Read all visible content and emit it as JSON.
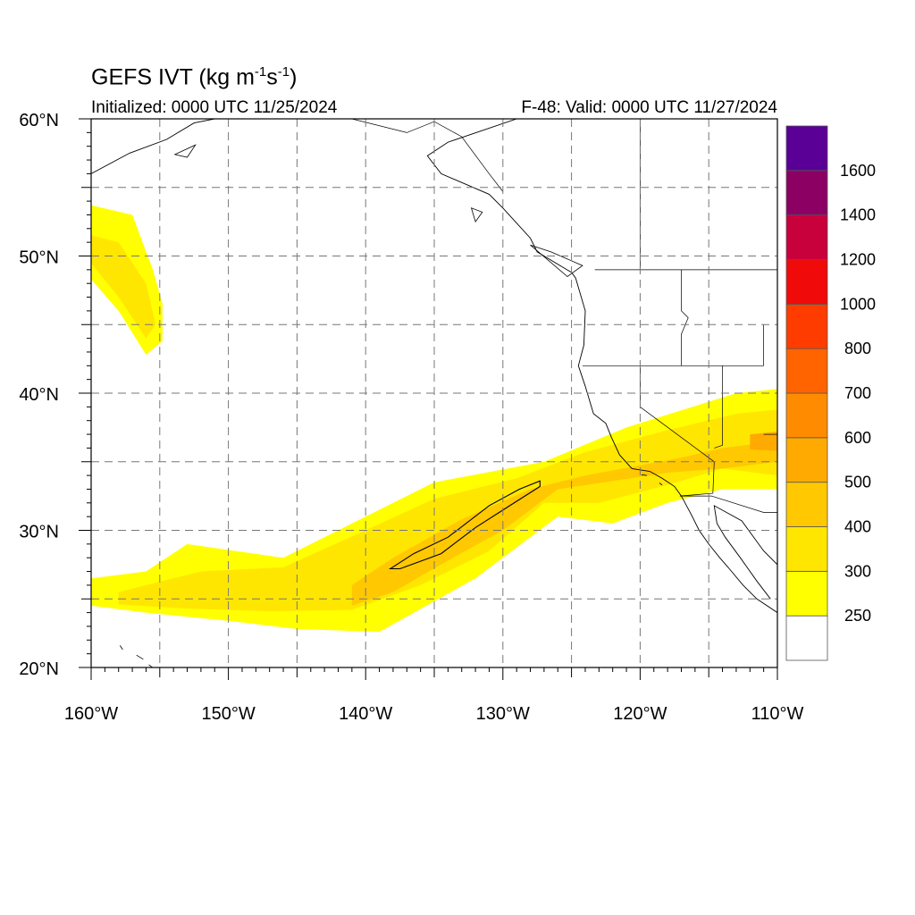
{
  "title": {
    "prefix": "GEFS IVT (kg m",
    "exp1": "-1",
    "mid": "s",
    "exp2": "-1",
    "suffix": ")"
  },
  "initialized": "Initialized: 0000 UTC 11/25/2024",
  "valid": "F-48: Valid: 0000 UTC 11/27/2024",
  "map": {
    "lon_range": [
      -160,
      -110
    ],
    "lat_range": [
      20,
      60
    ],
    "lat_ticks": [
      {
        "value": 60,
        "label": "60°N"
      },
      {
        "value": 50,
        "label": "50°N"
      },
      {
        "value": 40,
        "label": "40°N"
      },
      {
        "value": 30,
        "label": "30°N"
      },
      {
        "value": 20,
        "label": "20°N"
      }
    ],
    "lon_ticks": [
      {
        "value": -160,
        "label": "160°W"
      },
      {
        "value": -150,
        "label": "150°W"
      },
      {
        "value": -140,
        "label": "140°W"
      },
      {
        "value": -130,
        "label": "130°W"
      },
      {
        "value": -120,
        "label": "120°W"
      },
      {
        "value": -110,
        "label": "110°W"
      }
    ],
    "grid_lons": [
      -155,
      -150,
      -145,
      -140,
      -135,
      -130,
      -125,
      -120,
      -115
    ],
    "grid_lats": [
      25,
      30,
      35,
      40,
      45,
      50,
      55
    ]
  },
  "colorbar": {
    "levels": [
      {
        "label": "",
        "color": "#ffffff"
      },
      {
        "label": "250",
        "color": "#ffff00"
      },
      {
        "label": "300",
        "color": "#ffe600"
      },
      {
        "label": "400",
        "color": "#ffc800"
      },
      {
        "label": "500",
        "color": "#ffaa00"
      },
      {
        "label": "600",
        "color": "#ff8c00"
      },
      {
        "label": "700",
        "color": "#ff6400"
      },
      {
        "label": "800",
        "color": "#ff3c00"
      },
      {
        "label": "1000",
        "color": "#f00a0a"
      },
      {
        "label": "1200",
        "color": "#c8003c"
      },
      {
        "label": "1400",
        "color": "#8c0064"
      },
      {
        "label": "1600",
        "color": "#5a0096"
      }
    ]
  },
  "ivt_features": [
    {
      "name": "atmospheric-river-main",
      "level": 1,
      "lonlat": [
        [
          -160,
          26.5
        ],
        [
          -156,
          27
        ],
        [
          -153,
          29
        ],
        [
          -146,
          28
        ],
        [
          -140,
          31
        ],
        [
          -135,
          33.5
        ],
        [
          -127,
          35
        ],
        [
          -121,
          37.5
        ],
        [
          -113,
          40
        ],
        [
          -110,
          40.3
        ],
        [
          -110,
          33
        ],
        [
          -114,
          33
        ],
        [
          -118,
          32
        ],
        [
          -122,
          30.5
        ],
        [
          -126,
          31
        ],
        [
          -132,
          26.5
        ],
        [
          -139,
          22.6
        ],
        [
          -145,
          22.8
        ],
        [
          -150,
          23.4
        ],
        [
          -156,
          24
        ],
        [
          -160,
          24.5
        ]
      ]
    },
    {
      "name": "atmospheric-river-core",
      "level": 2,
      "lonlat": [
        [
          -158,
          25.5
        ],
        [
          -152,
          27
        ],
        [
          -146,
          27.3
        ],
        [
          -140,
          30
        ],
        [
          -135,
          32.3
        ],
        [
          -129,
          33.8
        ],
        [
          -124,
          35.7
        ],
        [
          -118,
          37.3
        ],
        [
          -113,
          38.5
        ],
        [
          -110,
          38.8
        ],
        [
          -110,
          34
        ],
        [
          -114,
          34.5
        ],
        [
          -118,
          33.3
        ],
        [
          -123,
          32
        ],
        [
          -127,
          32
        ],
        [
          -131,
          28.5
        ],
        [
          -136,
          26
        ],
        [
          -141,
          24.2
        ],
        [
          -147,
          24.1
        ],
        [
          -153,
          24.3
        ],
        [
          -158,
          24.6
        ]
      ]
    },
    {
      "name": "atmospheric-river-inner",
      "level": 3,
      "lonlat": [
        [
          -141,
          26
        ],
        [
          -138,
          28
        ],
        [
          -133,
          30.8
        ],
        [
          -128,
          33
        ],
        [
          -124,
          34
        ],
        [
          -117,
          35.3
        ],
        [
          -114,
          36
        ],
        [
          -110,
          36.5
        ],
        [
          -110,
          35
        ],
        [
          -114,
          34.5
        ],
        [
          -118,
          34.2
        ],
        [
          -122,
          33.6
        ],
        [
          -126,
          33
        ],
        [
          -130,
          30
        ],
        [
          -134,
          27.8
        ],
        [
          -138,
          25.5
        ],
        [
          -141,
          24.5
        ]
      ]
    },
    {
      "name": "atmospheric-river-hotspot",
      "level": 4,
      "lonlat": [
        [
          -112,
          37
        ],
        [
          -110,
          37.2
        ],
        [
          -110,
          35.8
        ],
        [
          -112,
          35.9
        ]
      ]
    },
    {
      "name": "north-pacific-plume",
      "level": 1,
      "lonlat": [
        [
          -160,
          53.7
        ],
        [
          -157,
          53
        ],
        [
          -155.5,
          49
        ],
        [
          -154.8,
          46.5
        ],
        [
          -154.8,
          43.8
        ],
        [
          -156,
          42.8
        ],
        [
          -158,
          46
        ],
        [
          -160,
          48.3
        ]
      ]
    },
    {
      "name": "north-pacific-plume-core",
      "level": 2,
      "lonlat": [
        [
          -158,
          51
        ],
        [
          -156,
          48
        ],
        [
          -155.3,
          45
        ],
        [
          -156,
          44
        ],
        [
          -158,
          47
        ],
        [
          -160,
          49.5
        ],
        [
          -160,
          51.5
        ]
      ]
    }
  ],
  "contour_400": [
    [
      -138.2,
      27.2
    ],
    [
      -136.5,
      28.3
    ],
    [
      -134,
      29.5
    ],
    [
      -131,
      31.8
    ],
    [
      -128.8,
      33
    ],
    [
      -127.3,
      33.6
    ],
    [
      -127.3,
      33.2
    ],
    [
      -129.5,
      31.8
    ],
    [
      -132,
      30.2
    ],
    [
      -134.5,
      28.3
    ],
    [
      -137.5,
      27.2
    ]
  ],
  "coastline": [
    [
      -129,
      60
    ],
    [
      -134,
      58.3
    ],
    [
      -135.5,
      57.3
    ],
    [
      -134.5,
      56
    ],
    [
      -131,
      54.5
    ],
    [
      -130,
      53.5
    ],
    [
      -128,
      51.3
    ],
    [
      -127.5,
      50.3
    ],
    [
      -125,
      48.8
    ],
    [
      -124.7,
      48.4
    ],
    [
      -124,
      46
    ],
    [
      -124.1,
      43.5
    ],
    [
      -124.5,
      42
    ],
    [
      -124,
      40.5
    ],
    [
      -123.4,
      38.5
    ],
    [
      -122.5,
      37.8
    ],
    [
      -122.1,
      36.8
    ],
    [
      -121.5,
      35.5
    ],
    [
      -120.6,
      34.5
    ],
    [
      -119.3,
      34.3
    ],
    [
      -118.4,
      33.8
    ],
    [
      -117.5,
      33.2
    ],
    [
      -117,
      32.5
    ],
    [
      -116.3,
      31.2
    ],
    [
      -115.7,
      30
    ],
    [
      -115,
      29
    ],
    [
      -114.2,
      28
    ],
    [
      -113.5,
      27.2
    ],
    [
      -112.5,
      26
    ],
    [
      -111.5,
      25
    ],
    [
      -110,
      24
    ]
  ],
  "gulf_coast": [
    [
      -110,
      27.5
    ],
    [
      -111,
      28.5
    ],
    [
      -112.6,
      30.7
    ],
    [
      -114.6,
      31.8
    ],
    [
      -114.4,
      30.5
    ],
    [
      -113.8,
      29.5
    ],
    [
      -112.7,
      28
    ],
    [
      -111.5,
      26.3
    ],
    [
      -110.5,
      25
    ]
  ],
  "alaska_coast": [
    [
      -160,
      56
    ],
    [
      -157.2,
      57.5
    ],
    [
      -154.5,
      58.5
    ],
    [
      -152.5,
      59.7
    ],
    [
      -151,
      60
    ]
  ],
  "islands": [
    [
      [
        -153.9,
        57.4
      ],
      [
        -152.4,
        58.1
      ],
      [
        -153,
        57.2
      ]
    ],
    [
      [
        -131.5,
        53.2
      ],
      [
        -132,
        52.5
      ],
      [
        -132.3,
        53.5
      ]
    ],
    [
      [
        -128,
        50.8
      ],
      [
        -125.3,
        48.5
      ],
      [
        -124.2,
        49.3
      ],
      [
        -126.5,
        50.3
      ]
    ],
    [
      [
        -118.6,
        33.45
      ],
      [
        -118.4,
        33.3
      ]
    ],
    [
      [
        -119.9,
        34.05
      ],
      [
        -119.5,
        34
      ]
    ],
    [
      [
        -157.9,
        21.6
      ],
      [
        -157.7,
        21.3
      ]
    ],
    [
      [
        -156.7,
        20.9
      ],
      [
        -156.2,
        20.6
      ]
    ],
    [
      [
        -155.8,
        20.2
      ],
      [
        -155,
        19.6
      ]
    ]
  ],
  "borders": [
    [
      [
        -141,
        60
      ],
      [
        -137,
        59
      ],
      [
        -135,
        59.8
      ],
      [
        -133,
        58.7
      ],
      [
        -131,
        56
      ],
      [
        -130,
        54.7
      ]
    ],
    [
      [
        -123.3,
        49
      ],
      [
        -110,
        49
      ]
    ],
    [
      [
        -120,
        60
      ],
      [
        -120,
        49
      ]
    ],
    [
      [
        -124.2,
        42
      ],
      [
        -111,
        42
      ]
    ],
    [
      [
        -120,
        42
      ],
      [
        -120,
        39
      ],
      [
        -114.6,
        35
      ],
      [
        -114.7,
        32.7
      ],
      [
        -117.1,
        32.5
      ]
    ],
    [
      [
        -117.1,
        32.5
      ],
      [
        -114.8,
        32.5
      ],
      [
        -111,
        31.3
      ],
      [
        -110,
        31.3
      ]
    ],
    [
      [
        -117,
        49
      ],
      [
        -117,
        46
      ],
      [
        -116.5,
        45.5
      ],
      [
        -117,
        44.3
      ],
      [
        -117,
        42
      ]
    ],
    [
      [
        -114,
        42
      ],
      [
        -114,
        36.2
      ],
      [
        -114.6,
        36
      ]
    ],
    [
      [
        -111,
        45
      ],
      [
        -111,
        42
      ]
    ],
    [
      [
        -111,
        37
      ],
      [
        -110,
        37
      ]
    ]
  ]
}
